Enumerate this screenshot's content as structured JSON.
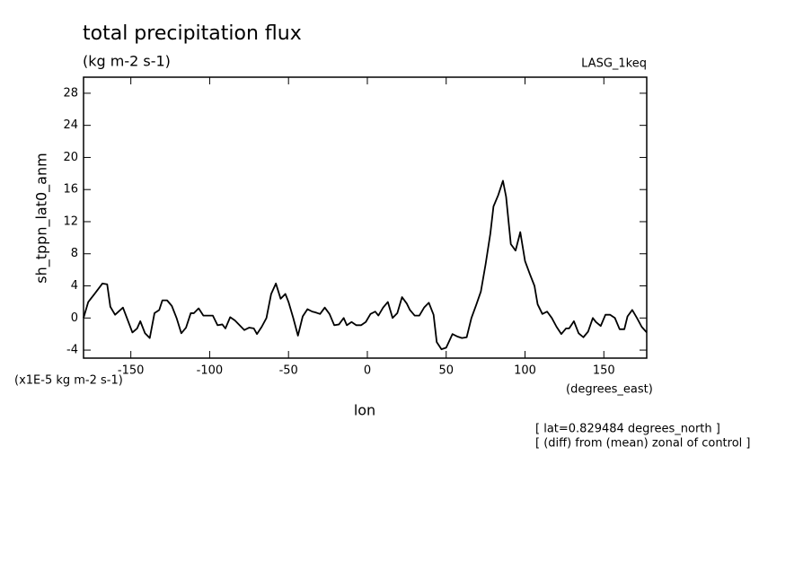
{
  "chart_data": {
    "type": "line",
    "title": "total precipitation flux",
    "subtitle": "(kg m-2 s-1)",
    "annotation_top_right": "LASG_1keq",
    "y_label": "sh_tppn_lat0_anm",
    "y_units": "(x1E-5 kg m-2 s-1)",
    "x_units": "(degrees_east)",
    "x_label": "lon",
    "notes": [
      "[ lat=0.829484 degrees_north ]",
      "[ (diff) from (mean) zonal of control ]"
    ],
    "xlim": [
      -180,
      177.1875
    ],
    "ylim": [
      -5,
      30
    ],
    "xticks": [
      -150,
      -100,
      -50,
      0,
      50,
      100,
      150
    ],
    "yticks": [
      -4,
      0,
      4,
      8,
      12,
      16,
      20,
      24,
      28
    ],
    "series": [
      {
        "color": "#000000",
        "x": [
          -180,
          -177,
          -173,
          -168,
          -165,
          -163,
          -160,
          -155,
          -149,
          -146,
          -144,
          -141,
          -138,
          -135,
          -132,
          -130,
          -127,
          -124,
          -121,
          -118,
          -115,
          -112,
          -110,
          -107,
          -104,
          -98,
          -95,
          -92,
          -90,
          -87,
          -84,
          -81,
          -78,
          -75,
          -72,
          -70,
          -67,
          -64,
          -61,
          -58,
          -55,
          -52,
          -50,
          -47,
          -44,
          -41,
          -38,
          -35,
          -33,
          -30,
          -27,
          -24,
          -21,
          -18,
          -15,
          -13,
          -10,
          -7,
          -4,
          -1,
          2,
          5,
          7,
          10,
          13,
          16,
          19,
          22,
          25,
          27,
          30,
          33,
          36,
          39,
          42,
          44,
          47,
          50,
          54,
          57,
          60,
          63,
          66,
          69,
          72,
          75,
          78,
          80,
          83,
          86,
          88,
          91,
          94,
          97,
          100,
          103,
          106,
          108,
          111,
          114,
          117,
          120,
          123,
          126,
          128,
          131,
          134,
          137,
          140,
          143,
          145,
          148,
          151,
          154,
          157,
          160,
          163,
          165,
          168,
          171,
          174,
          177.1875
        ],
        "values": [
          0,
          2,
          3,
          4.3,
          4.2,
          1.4,
          0.4,
          1.3,
          -1.8,
          -1.3,
          -0.4,
          -1.9,
          -2.5,
          0.6,
          1,
          2.2,
          2.2,
          1.5,
          0,
          -1.9,
          -1.2,
          0.6,
          0.6,
          1.2,
          0.3,
          0.3,
          -0.9,
          -0.8,
          -1.3,
          0.1,
          -0.3,
          -0.9,
          -1.5,
          -1.2,
          -1.3,
          -2,
          -1.1,
          0,
          3,
          4.3,
          2.4,
          3,
          2,
          0,
          -2.2,
          0.2,
          1.1,
          0.8,
          0.7,
          0.5,
          1.3,
          0.5,
          -0.9,
          -0.8,
          0,
          -0.9,
          -0.5,
          -0.9,
          -0.9,
          -0.5,
          0.5,
          0.8,
          0.3,
          1.3,
          2,
          0,
          0.6,
          2.6,
          1.8,
          1,
          0.3,
          0.3,
          1.3,
          1.9,
          0.4,
          -3,
          -3.9,
          -3.7,
          -2,
          -2.3,
          -2.5,
          -2.4,
          0,
          1.6,
          3.3,
          6.7,
          10.5,
          13.9,
          15.3,
          17.1,
          15.1,
          9.2,
          8.4,
          10.7,
          7.1,
          5.5,
          4,
          1.7,
          0.5,
          0.8,
          0,
          -1.1,
          -2,
          -1.3,
          -1.3,
          -0.4,
          -1.9,
          -2.4,
          -1.7,
          0,
          -0.5,
          -1,
          0.4,
          0.4,
          0,
          -1.4,
          -1.4,
          0.2,
          1,
          0,
          -1.1,
          -1.8
        ]
      }
    ]
  }
}
